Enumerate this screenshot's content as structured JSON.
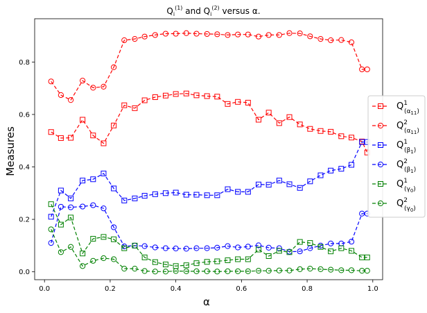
{
  "chart_data": {
    "type": "line",
    "title": {
      "q": "Q",
      "sub": "i",
      "sup1": "(1)",
      "and": " and ",
      "sup2": "(2)",
      "tail": " versus α."
    },
    "xlabel": "α",
    "ylabel": "Measures",
    "xlim": [
      -0.03,
      1.03
    ],
    "ylim": [
      -0.03,
      0.965
    ],
    "x_ticks": [
      {
        "v": 0.0,
        "label": "0.0"
      },
      {
        "v": 0.2,
        "label": "0.2"
      },
      {
        "v": 0.4,
        "label": "0.4"
      },
      {
        "v": 0.6,
        "label": "0.6"
      },
      {
        "v": 0.8,
        "label": "0.8"
      },
      {
        "v": 1.0,
        "label": "1.0"
      }
    ],
    "y_ticks": [
      {
        "v": 0.0,
        "label": "0.0"
      },
      {
        "v": 0.2,
        "label": "0.2"
      },
      {
        "v": 0.4,
        "label": "0.4"
      },
      {
        "v": 0.6,
        "label": "0.6"
      },
      {
        "v": 0.8,
        "label": "0.8"
      }
    ],
    "grid": false,
    "legend_position": "right",
    "x": [
      0.02,
      0.05,
      0.08,
      0.116,
      0.148,
      0.18,
      0.211,
      0.243,
      0.275,
      0.305,
      0.337,
      0.369,
      0.4,
      0.432,
      0.463,
      0.495,
      0.526,
      0.558,
      0.589,
      0.62,
      0.652,
      0.683,
      0.715,
      0.746,
      0.778,
      0.809,
      0.841,
      0.872,
      0.904,
      0.935,
      0.967,
      0.983
    ],
    "series": [
      {
        "name": "Q¹(α11)",
        "legend": {
          "q": "Q",
          "sup": "1",
          "sub": "(α",
          "subsub": "11",
          "close": ")"
        },
        "color": "#ff0000",
        "marker": "square",
        "values": [
          0.533,
          0.51,
          0.511,
          0.58,
          0.52,
          0.49,
          0.558,
          0.635,
          0.624,
          0.654,
          0.666,
          0.672,
          0.678,
          0.68,
          0.673,
          0.67,
          0.668,
          0.64,
          0.648,
          0.645,
          0.58,
          0.607,
          0.567,
          0.59,
          0.562,
          0.545,
          0.537,
          0.534,
          0.517,
          0.512,
          0.497,
          0.455
        ]
      },
      {
        "name": "Q²(α11)",
        "legend": {
          "q": "Q",
          "sup": "2",
          "sub": "(α",
          "subsub": "11",
          "close": ")"
        },
        "color": "#ff0000",
        "marker": "circle",
        "values": [
          0.726,
          0.674,
          0.655,
          0.729,
          0.702,
          0.706,
          0.78,
          0.883,
          0.888,
          0.897,
          0.903,
          0.908,
          0.908,
          0.91,
          0.908,
          0.907,
          0.906,
          0.903,
          0.905,
          0.905,
          0.897,
          0.903,
          0.903,
          0.91,
          0.909,
          0.898,
          0.888,
          0.883,
          0.884,
          0.875,
          0.772,
          0.772
        ]
      },
      {
        "name": "Q¹(β1)",
        "legend": {
          "q": "Q",
          "sup": "1",
          "sub": "(β",
          "subsub": "1",
          "close": ")"
        },
        "color": "#0000ff",
        "marker": "square",
        "values": [
          0.21,
          0.31,
          0.28,
          0.348,
          0.353,
          0.375,
          0.318,
          0.272,
          0.28,
          0.29,
          0.296,
          0.3,
          0.302,
          0.294,
          0.294,
          0.292,
          0.292,
          0.315,
          0.305,
          0.305,
          0.333,
          0.332,
          0.348,
          0.334,
          0.32,
          0.345,
          0.368,
          0.386,
          0.393,
          0.408,
          0.495,
          0.495
        ]
      },
      {
        "name": "Q²(β1)",
        "legend": {
          "q": "Q",
          "sup": "2",
          "sub": "(β",
          "subsub": "1",
          "close": ")"
        },
        "color": "#0000ff",
        "marker": "circle",
        "values": [
          0.11,
          0.248,
          0.246,
          0.249,
          0.254,
          0.242,
          0.17,
          0.097,
          0.1,
          0.098,
          0.093,
          0.09,
          0.089,
          0.088,
          0.09,
          0.09,
          0.092,
          0.098,
          0.093,
          0.096,
          0.101,
          0.092,
          0.09,
          0.077,
          0.078,
          0.09,
          0.1,
          0.108,
          0.108,
          0.115,
          0.222,
          0.222
        ]
      },
      {
        "name": "Q¹(γ0)",
        "legend": {
          "q": "Q",
          "sup": "1",
          "sub": "(γ",
          "subsub": "0",
          "close": ")"
        },
        "color": "#008000",
        "marker": "square",
        "values": [
          0.258,
          0.18,
          0.207,
          0.07,
          0.126,
          0.133,
          0.124,
          0.09,
          0.1,
          0.055,
          0.037,
          0.028,
          0.022,
          0.025,
          0.033,
          0.038,
          0.04,
          0.044,
          0.048,
          0.048,
          0.085,
          0.06,
          0.08,
          0.075,
          0.114,
          0.11,
          0.095,
          0.078,
          0.09,
          0.08,
          0.055,
          0.055
        ]
      },
      {
        "name": "Q²(γ0)",
        "legend": {
          "q": "Q",
          "sup": "2",
          "sub": "(γ",
          "subsub": "0",
          "close": ")"
        },
        "color": "#008000",
        "marker": "circle",
        "values": [
          0.162,
          0.075,
          0.095,
          0.022,
          0.042,
          0.052,
          0.048,
          0.012,
          0.012,
          0.003,
          0.001,
          0.001,
          0.003,
          0.002,
          0.002,
          0.002,
          0.001,
          0.002,
          0.002,
          0.002,
          0.004,
          0.004,
          0.005,
          0.005,
          0.01,
          0.012,
          0.01,
          0.008,
          0.006,
          0.006,
          0.004,
          0.004
        ]
      }
    ]
  }
}
